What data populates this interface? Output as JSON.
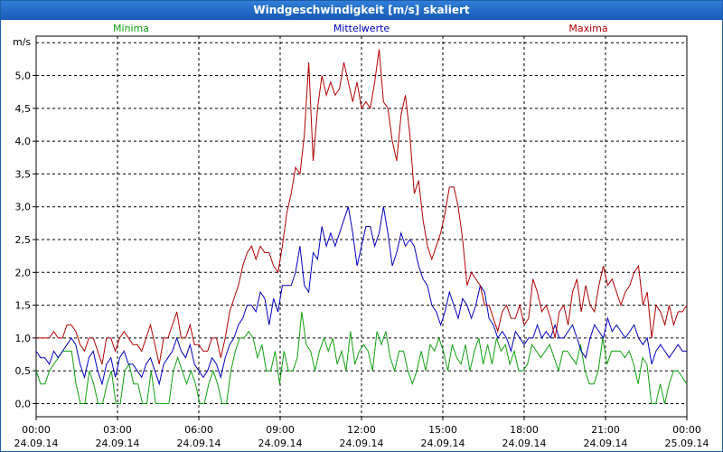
{
  "window": {
    "title": "Windgeschwindigkeit [m/s] skaliert"
  },
  "chart_data": {
    "type": "line",
    "title": "Windgeschwindigkeit [m/s] skaliert",
    "ylabel": "m/s",
    "ylim": [
      -0.2,
      5.6
    ],
    "y_ticks": [
      "0,0",
      "0,5",
      "1,0",
      "1,5",
      "2,0",
      "2,5",
      "3,0",
      "3,5",
      "4,0",
      "4,5",
      "5,0"
    ],
    "x_ticks": [
      {
        "time": "00:00",
        "date": "24.09.14"
      },
      {
        "time": "03:00",
        "date": "24.09.14"
      },
      {
        "time": "06:00",
        "date": "24.09.14"
      },
      {
        "time": "09:00",
        "date": "24.09.14"
      },
      {
        "time": "12:00",
        "date": "24.09.14"
      },
      {
        "time": "15:00",
        "date": "24.09.14"
      },
      {
        "time": "18:00",
        "date": "24.09.14"
      },
      {
        "time": "21:00",
        "date": "24.09.14"
      },
      {
        "time": "00:00",
        "date": "25.09.14"
      }
    ],
    "grid": true,
    "series": [
      {
        "name": "Minima",
        "color": "#10a010",
        "values": [
          0.5,
          0.3,
          0.3,
          0.5,
          0.6,
          0.7,
          0.8,
          0.8,
          0.8,
          0.3,
          0.0,
          0.0,
          0.5,
          0.3,
          0.0,
          0.0,
          0.3,
          0.5,
          0.0,
          0.0,
          0.5,
          0.6,
          0.3,
          0.3,
          0.0,
          0.0,
          0.5,
          0.0,
          0.0,
          0.0,
          0.0,
          0.5,
          0.7,
          0.5,
          0.3,
          0.5,
          0.3,
          0.0,
          0.0,
          0.3,
          0.5,
          0.3,
          0.0,
          0.0,
          0.5,
          0.8,
          1.0,
          1.0,
          1.1,
          1.0,
          0.7,
          0.9,
          0.5,
          0.5,
          0.8,
          0.3,
          0.8,
          0.5,
          0.5,
          0.7,
          1.4,
          0.9,
          0.8,
          0.5,
          0.8,
          1.0,
          0.8,
          1.0,
          0.6,
          0.8,
          0.5,
          1.1,
          0.6,
          0.8,
          0.9,
          0.8,
          0.5,
          1.1,
          0.9,
          1.1,
          0.7,
          0.5,
          0.8,
          0.8,
          0.5,
          0.3,
          0.5,
          0.8,
          0.5,
          0.9,
          0.8,
          1.0,
          0.8,
          0.5,
          0.9,
          0.7,
          0.6,
          0.9,
          0.5,
          0.8,
          1.0,
          0.6,
          0.9,
          0.6,
          1.0,
          0.8,
          0.9,
          0.6,
          0.8,
          0.5,
          0.5,
          0.6,
          0.9,
          0.8,
          0.7,
          0.8,
          0.9,
          0.7,
          0.5,
          0.8,
          0.8,
          0.7,
          0.6,
          0.9,
          0.5,
          0.3,
          0.3,
          0.5,
          1.0,
          0.6,
          0.8,
          0.8,
          0.8,
          0.7,
          0.8,
          0.6,
          0.3,
          0.7,
          0.6,
          0.0,
          0.0,
          0.3,
          0.0,
          0.3,
          0.5,
          0.5,
          0.4,
          0.3
        ]
      },
      {
        "name": "Mittelwerte",
        "color": "#0000c0",
        "values": [
          0.8,
          0.7,
          0.7,
          0.6,
          0.8,
          0.7,
          0.8,
          0.9,
          1.0,
          0.9,
          0.6,
          0.4,
          0.7,
          0.8,
          0.5,
          0.3,
          0.6,
          0.7,
          0.4,
          0.7,
          0.8,
          0.6,
          0.6,
          0.5,
          0.4,
          0.6,
          0.7,
          0.5,
          0.3,
          0.6,
          0.7,
          0.8,
          1.0,
          0.8,
          0.7,
          0.9,
          0.6,
          0.5,
          0.4,
          0.5,
          0.7,
          0.6,
          0.4,
          0.7,
          0.9,
          1.0,
          1.2,
          1.3,
          1.5,
          1.5,
          1.4,
          1.7,
          1.6,
          1.2,
          1.6,
          1.4,
          1.8,
          1.8,
          1.8,
          2.0,
          2.4,
          1.8,
          1.7,
          2.3,
          2.2,
          2.7,
          2.4,
          2.6,
          2.4,
          2.6,
          2.8,
          3.0,
          2.6,
          2.1,
          2.4,
          2.7,
          2.7,
          2.4,
          2.6,
          3.0,
          2.6,
          2.1,
          2.3,
          2.6,
          2.4,
          2.5,
          2.4,
          2.1,
          1.9,
          1.8,
          1.5,
          1.4,
          1.2,
          1.4,
          1.7,
          1.5,
          1.3,
          1.6,
          1.5,
          1.3,
          1.5,
          1.8,
          1.7,
          1.3,
          1.2,
          1.0,
          1.1,
          1.0,
          0.8,
          1.1,
          1.0,
          0.9,
          1.0,
          1.0,
          1.2,
          1.0,
          1.1,
          1.0,
          1.2,
          1.0,
          1.0,
          1.1,
          1.2,
          1.0,
          0.8,
          0.7,
          1.0,
          1.2,
          1.1,
          1.0,
          1.3,
          1.1,
          1.2,
          1.1,
          1.0,
          1.1,
          1.2,
          1.0,
          0.9,
          1.0,
          0.6,
          0.8,
          0.9,
          0.8,
          0.7,
          0.8,
          0.9,
          0.8,
          0.8
        ]
      },
      {
        "name": "Maxima",
        "color": "#b00000",
        "values": [
          1.0,
          1.0,
          1.0,
          1.0,
          1.1,
          1.0,
          1.0,
          1.2,
          1.2,
          1.1,
          0.9,
          0.8,
          1.0,
          1.0,
          0.8,
          0.6,
          1.0,
          1.0,
          0.8,
          1.0,
          1.1,
          1.0,
          0.9,
          0.9,
          0.8,
          1.0,
          1.2,
          0.9,
          0.6,
          1.0,
          1.0,
          1.2,
          1.4,
          1.0,
          1.0,
          1.2,
          0.9,
          0.9,
          0.8,
          0.8,
          1.0,
          1.0,
          0.7,
          1.0,
          1.4,
          1.6,
          1.8,
          2.1,
          2.3,
          2.4,
          2.2,
          2.4,
          2.3,
          2.3,
          2.1,
          2.0,
          2.4,
          2.9,
          3.2,
          3.6,
          3.5,
          4.1,
          5.2,
          3.7,
          4.5,
          5.0,
          4.7,
          4.9,
          4.7,
          4.8,
          5.2,
          4.9,
          4.6,
          4.9,
          4.5,
          4.6,
          4.5,
          4.9,
          5.4,
          4.6,
          4.5,
          4.0,
          3.7,
          4.4,
          4.7,
          4.1,
          3.2,
          3.4,
          2.8,
          2.4,
          2.2,
          2.4,
          2.6,
          2.9,
          3.3,
          3.3,
          3.0,
          2.5,
          1.8,
          2.0,
          1.9,
          1.8,
          1.5,
          1.5,
          1.3,
          1.1,
          1.4,
          1.5,
          1.3,
          1.3,
          1.5,
          1.2,
          1.3,
          1.9,
          1.7,
          1.4,
          1.5,
          1.3,
          1.0,
          1.4,
          1.5,
          1.2,
          1.7,
          1.9,
          1.4,
          1.8,
          1.5,
          1.4,
          1.8,
          2.1,
          1.8,
          1.9,
          1.7,
          1.5,
          1.7,
          1.8,
          2.0,
          2.1,
          1.5,
          1.7,
          1.0,
          1.5,
          1.4,
          1.2,
          1.5,
          1.2,
          1.4,
          1.4,
          1.5
        ]
      }
    ]
  }
}
